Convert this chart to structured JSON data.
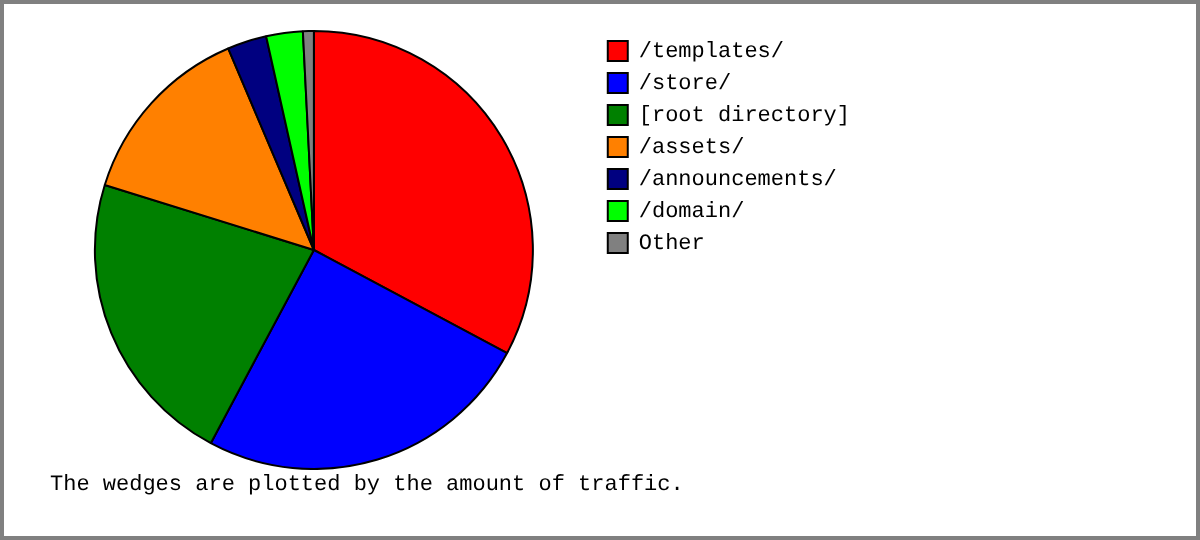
{
  "chart_data": {
    "type": "pie",
    "categories": [
      "/templates/",
      "/store/",
      "[root directory]",
      "/assets/",
      "/announcements/",
      "/domain/",
      "Other"
    ],
    "values": [
      32.8,
      25,
      22,
      13.8,
      2.9,
      2.7,
      0.8
    ],
    "colors": [
      "#ff0000",
      "#0000ff",
      "#008000",
      "#ff8000",
      "#000080",
      "#00ff00",
      "#808080"
    ],
    "legend": "right",
    "annotations": [
      "The wedges are plotted by the amount of traffic."
    ]
  }
}
